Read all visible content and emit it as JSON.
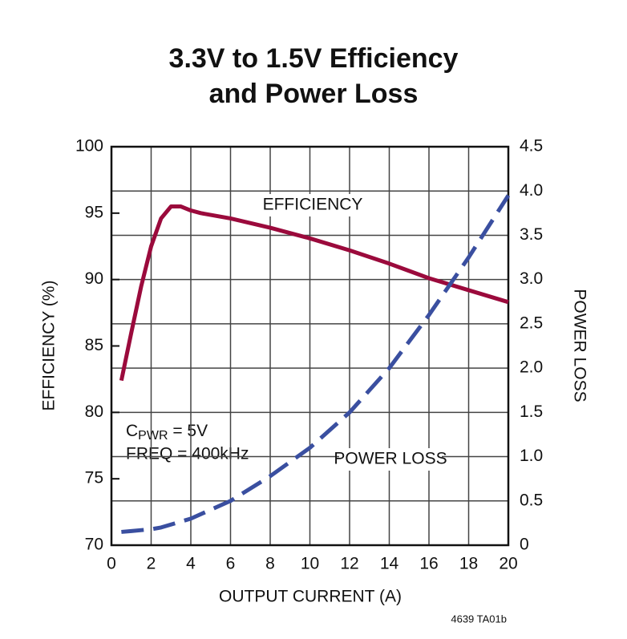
{
  "chart_data": {
    "type": "line",
    "title": [
      "3.3V to 1.5V Efficiency",
      "and Power Loss"
    ],
    "x_label": "OUTPUT CURRENT (A)",
    "y_label": "EFFICIENCY (%)",
    "y2_label": "POWER LOSS",
    "footnote": "4639 TA01b",
    "cpwr_label": {
      "base": "C",
      "subscript": "PWR",
      "text": " = 5V"
    },
    "freq_label": "FREQ = 400kHz",
    "xlim": [
      0,
      20
    ],
    "xticks": [
      0,
      2,
      4,
      6,
      8,
      10,
      12,
      14,
      16,
      18,
      20
    ],
    "ylim": [
      70,
      100
    ],
    "yticks": [
      70,
      75,
      80,
      85,
      90,
      95,
      100
    ],
    "y2lim": [
      0,
      4.5
    ],
    "y2ticks": [
      0,
      0.5,
      {
        "value": 1,
        "label": "1.0"
      },
      1.5,
      {
        "value": 2,
        "label": "2.0"
      },
      2.5,
      {
        "value": 3,
        "label": "3.0"
      },
      3.5,
      {
        "value": 4,
        "label": "4.0"
      },
      4.5
    ],
    "grid": true,
    "series": [
      {
        "name": "EFFICIENCY",
        "color": "#9b0a3c",
        "dashed": false,
        "x": [
          0.5,
          1,
          1.5,
          2,
          2.5,
          3,
          3.5,
          4,
          4.5,
          6,
          8,
          10,
          12,
          14,
          16,
          18,
          20
        ],
        "values": [
          82.4,
          86,
          89.5,
          92.5,
          94.6,
          95.5,
          95.5,
          95.2,
          95.0,
          94.6,
          93.9,
          93.1,
          92.2,
          91.2,
          90.1,
          89.2,
          88.3
        ]
      },
      {
        "name": "POWER LOSS",
        "color": "#3a4fa0",
        "dashed": true,
        "axis": "y2",
        "x": [
          0.5,
          1,
          2,
          2.5,
          4,
          6,
          8,
          10,
          12,
          14,
          16,
          18,
          20
        ],
        "values": [
          0.15,
          0.16,
          0.18,
          0.2,
          0.3,
          0.5,
          0.78,
          1.1,
          1.5,
          2.0,
          2.6,
          3.25,
          3.95
        ]
      }
    ]
  }
}
